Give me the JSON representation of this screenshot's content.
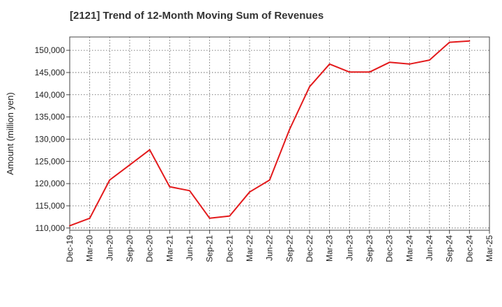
{
  "chart_data": {
    "type": "line",
    "title": "[2121]  Trend of 12-Month Moving Sum of Revenues",
    "xlabel": "",
    "ylabel": "Amount (million yen)",
    "categories": [
      "Dec-19",
      "Mar-20",
      "Jun-20",
      "Sep-20",
      "Dec-20",
      "Mar-21",
      "Jun-21",
      "Sep-21",
      "Dec-21",
      "Mar-22",
      "Jun-22",
      "Sep-22",
      "Dec-22",
      "Mar-23",
      "Jun-23",
      "Sep-23",
      "Dec-23",
      "Mar-24",
      "Jun-24",
      "Sep-24",
      "Dec-24",
      "Mar-25"
    ],
    "series": [
      {
        "values": [
          110500,
          112200,
          120800,
          124200,
          127600,
          119300,
          118400,
          112200,
          112700,
          118100,
          120800,
          132200,
          141800,
          146900,
          145100,
          145100,
          147300,
          146900,
          147800,
          151800,
          152100,
          null
        ],
        "color": "#e31a1c"
      }
    ],
    "ylim": [
      109500,
      153000
    ],
    "yticks": [
      110000,
      115000,
      120000,
      125000,
      130000,
      135000,
      140000,
      145000,
      150000
    ],
    "ytick_labels": [
      "110,000",
      "115,000",
      "120,000",
      "125,000",
      "130,000",
      "135,000",
      "140,000",
      "145,000",
      "150,000"
    ],
    "grid": true,
    "grid_style": "dotted"
  }
}
